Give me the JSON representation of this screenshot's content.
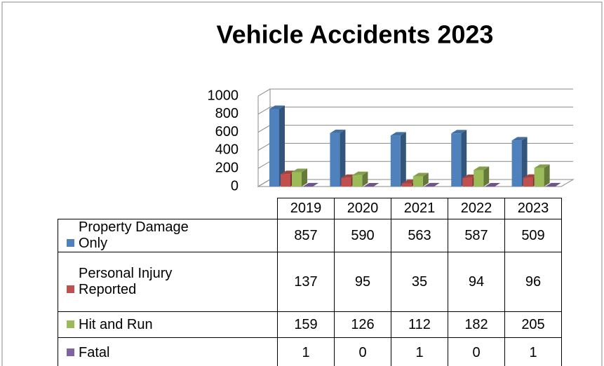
{
  "chart_data": {
    "type": "bar",
    "title": "Vehicle Accidents 2023",
    "categories": [
      "2019",
      "2020",
      "2021",
      "2022",
      "2023"
    ],
    "series": [
      {
        "name": "Property Damage Only",
        "color": "#4f81bd",
        "values": [
          857,
          590,
          563,
          587,
          509
        ]
      },
      {
        "name": "Personal Injury Reported",
        "color": "#c0504d",
        "values": [
          137,
          95,
          35,
          94,
          96
        ]
      },
      {
        "name": "Hit and Run",
        "color": "#9bbb59",
        "values": [
          159,
          126,
          112,
          182,
          205
        ]
      },
      {
        "name": "Fatal",
        "color": "#8064a2",
        "values": [
          1,
          0,
          1,
          0,
          1
        ]
      }
    ],
    "ylim": [
      0,
      1000
    ],
    "yticks": [
      0,
      200,
      400,
      600,
      800,
      1000
    ],
    "grid": true
  }
}
